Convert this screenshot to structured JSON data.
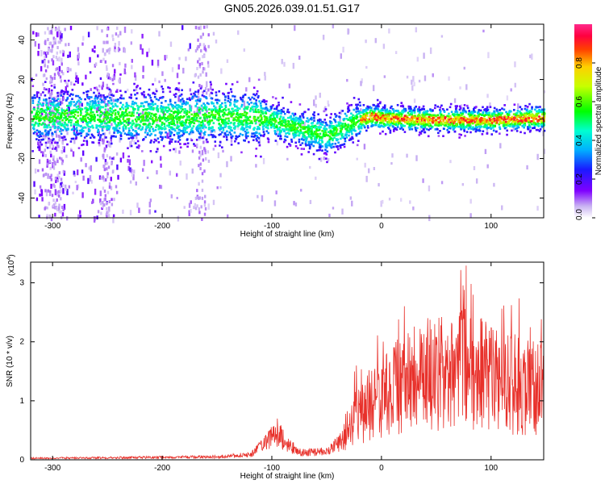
{
  "title": "GN05.2026.039.01.51.G17",
  "chart_data": [
    {
      "type": "heatmap",
      "xlabel": "Height of straight line (km)",
      "ylabel": "Frequency (Hz)",
      "xlim": [
        -320,
        148
      ],
      "ylim": [
        -50,
        48
      ],
      "x_ticks": [
        "-300",
        "-200",
        "-100",
        "0",
        "100"
      ],
      "y_ticks": [
        "-40",
        "-20",
        "0",
        "20",
        "40"
      ],
      "colorbar": {
        "label": "Normalized spectral amplitude",
        "range": [
          0,
          1
        ],
        "ticks": [
          "0.0",
          "0.2",
          "0.4",
          "0.6",
          "0.8"
        ]
      },
      "center_track": {
        "x": [
          -320,
          -250,
          -200,
          -150,
          -110,
          -90,
          -70,
          -50,
          -30,
          -10,
          0,
          50,
          100,
          148
        ],
        "y": [
          2,
          2,
          1,
          2,
          1,
          -2,
          -5,
          -8,
          -2,
          2,
          1,
          0,
          0,
          1
        ]
      }
    },
    {
      "type": "line",
      "xlabel": "Height of straight line (km)",
      "ylabel": "SNR (10 * v/v)",
      "y_multiplier": "(x10",
      "y_multiplier_exp": "4",
      "xlim": [
        -320,
        148
      ],
      "ylim": [
        0,
        3.35
      ],
      "x_ticks": [
        "-300",
        "-200",
        "-100",
        "0",
        "100"
      ],
      "y_ticks": [
        "0",
        "1",
        "2",
        "3"
      ],
      "series": [
        {
          "color": "#e8302a",
          "envelope_x": [
            -320,
            -250,
            -200,
            -150,
            -120,
            -110,
            -100,
            -95,
            -85,
            -75,
            -60,
            -50,
            -40,
            -30,
            -25,
            -15,
            -5,
            10,
            30,
            50,
            70,
            90,
            110,
            130,
            148
          ],
          "envelope_y": [
            0.03,
            0.04,
            0.05,
            0.06,
            0.1,
            0.25,
            0.45,
            0.55,
            0.3,
            0.15,
            0.15,
            0.2,
            0.3,
            0.6,
            0.9,
            1.1,
            1.3,
            1.5,
            1.8,
            1.9,
            2.0,
            1.9,
            1.7,
            1.6,
            1.5
          ]
        }
      ]
    }
  ]
}
